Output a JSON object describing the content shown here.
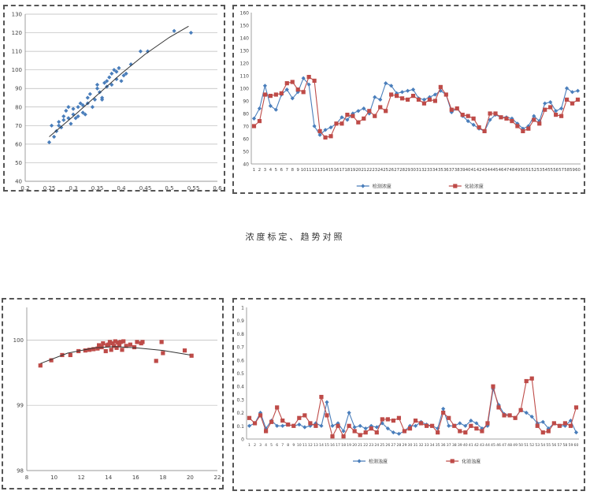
{
  "caption": "浓度标定、趋势对照",
  "colors": {
    "blue": "#4a7ebb",
    "red": "#be4b48",
    "curve": "#333333",
    "grid": "#b8b8b8"
  },
  "chart_data": [
    {
      "type": "scatter",
      "title": "",
      "xlabel": "",
      "ylabel": "",
      "xlim": [
        0.2,
        0.6
      ],
      "ylim": [
        40,
        130
      ],
      "xticks": [
        "0.2",
        "0.25",
        "0.3",
        "0.35",
        "0.4",
        "0.45",
        "0.5",
        "0.55",
        "0.6"
      ],
      "yticks": [
        "40",
        "50",
        "60",
        "70",
        "80",
        "90",
        "100",
        "110",
        "120",
        "130"
      ],
      "grid": "horizontal",
      "series": [
        {
          "points": [
            [
              0.25,
              61
            ],
            [
              0.255,
              70
            ],
            [
              0.26,
              64
            ],
            [
              0.265,
              67
            ],
            [
              0.27,
              70
            ],
            [
              0.27,
              72
            ],
            [
              0.275,
              69
            ],
            [
              0.28,
              73
            ],
            [
              0.28,
              75
            ],
            [
              0.285,
              78
            ],
            [
              0.29,
              80
            ],
            [
              0.29,
              74
            ],
            [
              0.295,
              71
            ],
            [
              0.3,
              76
            ],
            [
              0.3,
              79
            ],
            [
              0.305,
              74
            ],
            [
              0.31,
              80
            ],
            [
              0.31,
              75
            ],
            [
              0.315,
              82
            ],
            [
              0.32,
              77
            ],
            [
              0.32,
              81
            ],
            [
              0.325,
              76
            ],
            [
              0.33,
              85
            ],
            [
              0.33,
              82
            ],
            [
              0.335,
              87
            ],
            [
              0.34,
              80
            ],
            [
              0.345,
              84
            ],
            [
              0.35,
              90
            ],
            [
              0.35,
              92
            ],
            [
              0.355,
              88
            ],
            [
              0.36,
              85
            ],
            [
              0.36,
              84
            ],
            [
              0.365,
              93
            ],
            [
              0.37,
              91
            ],
            [
              0.37,
              94
            ],
            [
              0.375,
              96
            ],
            [
              0.38,
              92
            ],
            [
              0.38,
              98
            ],
            [
              0.385,
              100
            ],
            [
              0.39,
              95
            ],
            [
              0.39,
              99
            ],
            [
              0.395,
              101
            ],
            [
              0.4,
              94
            ],
            [
              0.405,
              97
            ],
            [
              0.41,
              98
            ],
            [
              0.42,
              103
            ],
            [
              0.44,
              110
            ],
            [
              0.455,
              110
            ],
            [
              0.51,
              121
            ],
            [
              0.545,
              120
            ]
          ]
        }
      ],
      "trend": [
        [
          0.25,
          64
        ],
        [
          0.3,
          75
        ],
        [
          0.35,
          86.5
        ],
        [
          0.4,
          98
        ],
        [
          0.45,
          108.5
        ],
        [
          0.5,
          117.5
        ],
        [
          0.54,
          123.5
        ]
      ]
    },
    {
      "type": "line",
      "title": "",
      "xlabel": "",
      "ylabel": "",
      "ylim": [
        40,
        160
      ],
      "yticks": [
        "40",
        "50",
        "60",
        "70",
        "80",
        "90",
        "100",
        "110",
        "120",
        "130",
        "140",
        "150",
        "160"
      ],
      "legend": "bottom",
      "categories": [
        "1",
        "2",
        "3",
        "4",
        "5",
        "6",
        "7",
        "8",
        "9",
        "10",
        "11",
        "12",
        "13",
        "14",
        "15",
        "16",
        "17",
        "18",
        "19",
        "20",
        "21",
        "22",
        "23",
        "24",
        "25",
        "26",
        "27",
        "28",
        "29",
        "30",
        "31",
        "32",
        "33",
        "34",
        "35",
        "36",
        "37",
        "38",
        "39",
        "40",
        "41",
        "42",
        "43",
        "44",
        "45",
        "46",
        "47",
        "48",
        "49",
        "50",
        "51",
        "52",
        "53",
        "54",
        "55",
        "56",
        "57",
        "58",
        "59",
        "60"
      ],
      "series": [
        {
          "name": "检测浓度",
          "values": [
            76,
            84,
            102,
            86,
            83,
            95,
            99,
            92,
            97,
            108,
            103,
            70,
            63,
            67,
            69,
            72,
            77,
            75,
            80,
            82,
            84,
            80,
            93,
            91,
            104,
            102,
            96,
            97,
            98,
            99,
            92,
            91,
            93,
            95,
            98,
            95,
            81,
            84,
            78,
            74,
            71,
            68,
            66,
            75,
            79,
            77,
            77,
            76,
            72,
            68,
            70,
            78,
            74,
            88,
            89,
            82,
            84,
            100,
            97,
            98
          ]
        },
        {
          "name": "化验浓度",
          "values": [
            70,
            74,
            95,
            94,
            95,
            96,
            104,
            105,
            99,
            97,
            109,
            106,
            66,
            61,
            62,
            72,
            72,
            79,
            78,
            73,
            76,
            82,
            78,
            85,
            82,
            95,
            94,
            92,
            91,
            94,
            91,
            88,
            91,
            90,
            101,
            95,
            83,
            84,
            79,
            78,
            76,
            69,
            66,
            80,
            80,
            77,
            76,
            74,
            70,
            66,
            68,
            75,
            72,
            83,
            85,
            79,
            78,
            91,
            88,
            91
          ]
        }
      ]
    },
    {
      "type": "scatter",
      "title": "",
      "xlabel": "",
      "ylabel": "",
      "xlim": [
        8,
        22
      ],
      "ylim": [
        98,
        100.5
      ],
      "xticks": [
        "8",
        "10",
        "12",
        "14",
        "16",
        "18",
        "20",
        "22"
      ],
      "yticks": [
        "98",
        "99",
        "100"
      ],
      "grid": "horizontal",
      "series": [
        {
          "points": [
            [
              9,
              99.61
            ],
            [
              9.8,
              99.69
            ],
            [
              10.6,
              99.77
            ],
            [
              11.2,
              99.77
            ],
            [
              11.8,
              99.83
            ],
            [
              12.3,
              99.84
            ],
            [
              12.6,
              99.85
            ],
            [
              12.9,
              99.86
            ],
            [
              13.2,
              99.87
            ],
            [
              13.3,
              99.92
            ],
            [
              13.5,
              99.89
            ],
            [
              13.6,
              99.95
            ],
            [
              13.8,
              99.83
            ],
            [
              13.9,
              99.92
            ],
            [
              14,
              99.93
            ],
            [
              14.1,
              99.97
            ],
            [
              14.2,
              99.85
            ],
            [
              14.3,
              99.95
            ],
            [
              14.4,
              99.91
            ],
            [
              14.5,
              99.98
            ],
            [
              14.6,
              99.88
            ],
            [
              14.7,
              99.96
            ],
            [
              14.8,
              99.92
            ],
            [
              14.9,
              99.97
            ],
            [
              15,
              99.85
            ],
            [
              15.1,
              99.98
            ],
            [
              15.3,
              99.91
            ],
            [
              15.6,
              99.93
            ],
            [
              15.9,
              99.89
            ],
            [
              16.1,
              99.97
            ],
            [
              16.4,
              99.95
            ],
            [
              16.5,
              99.97
            ],
            [
              17.5,
              99.68
            ],
            [
              17.9,
              99.97
            ],
            [
              18,
              99.8
            ],
            [
              19.6,
              99.84
            ],
            [
              20.1,
              99.76
            ]
          ],
          "color": "red"
        }
      ],
      "trend": [
        [
          9,
          99.64
        ],
        [
          11,
          99.8
        ],
        [
          13,
          99.88
        ],
        [
          14.5,
          99.9
        ],
        [
          16,
          99.88
        ],
        [
          18,
          99.84
        ],
        [
          20,
          99.77
        ]
      ]
    },
    {
      "type": "line",
      "title": "",
      "xlabel": "",
      "ylabel": "",
      "ylim": [
        0,
        1
      ],
      "yticks": [
        "0",
        "0.1",
        "0.2",
        "0.3",
        "0.4",
        "0.5",
        "0.6",
        "0.7",
        "0.8",
        "0.9",
        "1"
      ],
      "legend": "bottom",
      "categories": [
        "1",
        "2",
        "3",
        "4",
        "5",
        "6",
        "7",
        "8",
        "9",
        "10",
        "11",
        "12",
        "13",
        "14",
        "15",
        "16",
        "17",
        "18",
        "19",
        "20",
        "21",
        "22",
        "23",
        "24",
        "25",
        "26",
        "27",
        "28",
        "29",
        "30",
        "31",
        "32",
        "33",
        "34",
        "35",
        "36",
        "37",
        "38",
        "39",
        "40",
        "41",
        "42",
        "43",
        "44",
        "45",
        "46",
        "47",
        "48",
        "49",
        "50",
        "51",
        "52",
        "53",
        "54",
        "55",
        "56",
        "57",
        "58",
        "59",
        "60"
      ],
      "series": [
        {
          "name": "检测浊度",
          "values": [
            0.1,
            0.12,
            0.2,
            0.08,
            0.14,
            0.1,
            0.1,
            0.11,
            0.1,
            0.11,
            0.09,
            0.1,
            0.12,
            0.1,
            0.28,
            0.1,
            0.12,
            0.06,
            0.2,
            0.09,
            0.1,
            0.08,
            0.1,
            0.09,
            0.12,
            0.08,
            0.05,
            0.04,
            0.06,
            0.1,
            0.1,
            0.13,
            0.11,
            0.1,
            0.08,
            0.23,
            0.1,
            0.1,
            0.12,
            0.1,
            0.14,
            0.12,
            0.08,
            0.1,
            0.38,
            0.26,
            0.19,
            0.18,
            0.16,
            0.22,
            0.2,
            0.17,
            0.12,
            0.13,
            0.08,
            0.12,
            0.1,
            0.1,
            0.14,
            0.05
          ]
        },
        {
          "name": "化验浊度",
          "values": [
            0.16,
            0.12,
            0.18,
            0.06,
            0.13,
            0.24,
            0.14,
            0.11,
            0.1,
            0.16,
            0.18,
            0.12,
            0.1,
            0.32,
            0.18,
            0.02,
            0.1,
            0.02,
            0.1,
            0.06,
            0.03,
            0.05,
            0.08,
            0.05,
            0.15,
            0.15,
            0.14,
            0.16,
            0.06,
            0.08,
            0.14,
            0.12,
            0.1,
            0.1,
            0.05,
            0.2,
            0.16,
            0.1,
            0.06,
            0.05,
            0.1,
            0.08,
            0.06,
            0.12,
            0.4,
            0.24,
            0.18,
            0.18,
            0.16,
            0.22,
            0.44,
            0.46,
            0.1,
            0.05,
            0.06,
            0.12,
            0.1,
            0.12,
            0.1,
            0.24
          ]
        }
      ]
    }
  ]
}
